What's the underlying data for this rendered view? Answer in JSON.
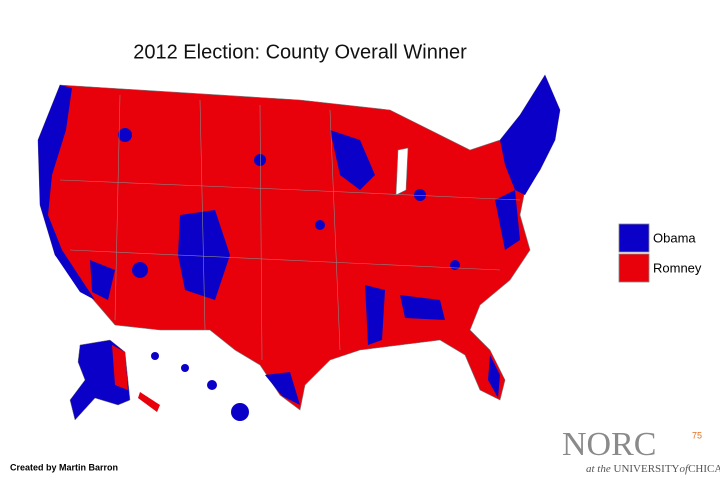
{
  "title": "2012 Election: County Overall Winner",
  "legend": [
    {
      "label": "Obama",
      "color": "#0a00c8"
    },
    {
      "label": "Romney",
      "color": "#e8000b"
    }
  ],
  "credit": "Created by Martin Barron",
  "logo": {
    "name": "NORC",
    "superscript": "75",
    "tagline_prefix": "at the",
    "tagline_university": "UNIVERSITY",
    "tagline_of": "of",
    "tagline_city": "CHICAGO"
  }
}
